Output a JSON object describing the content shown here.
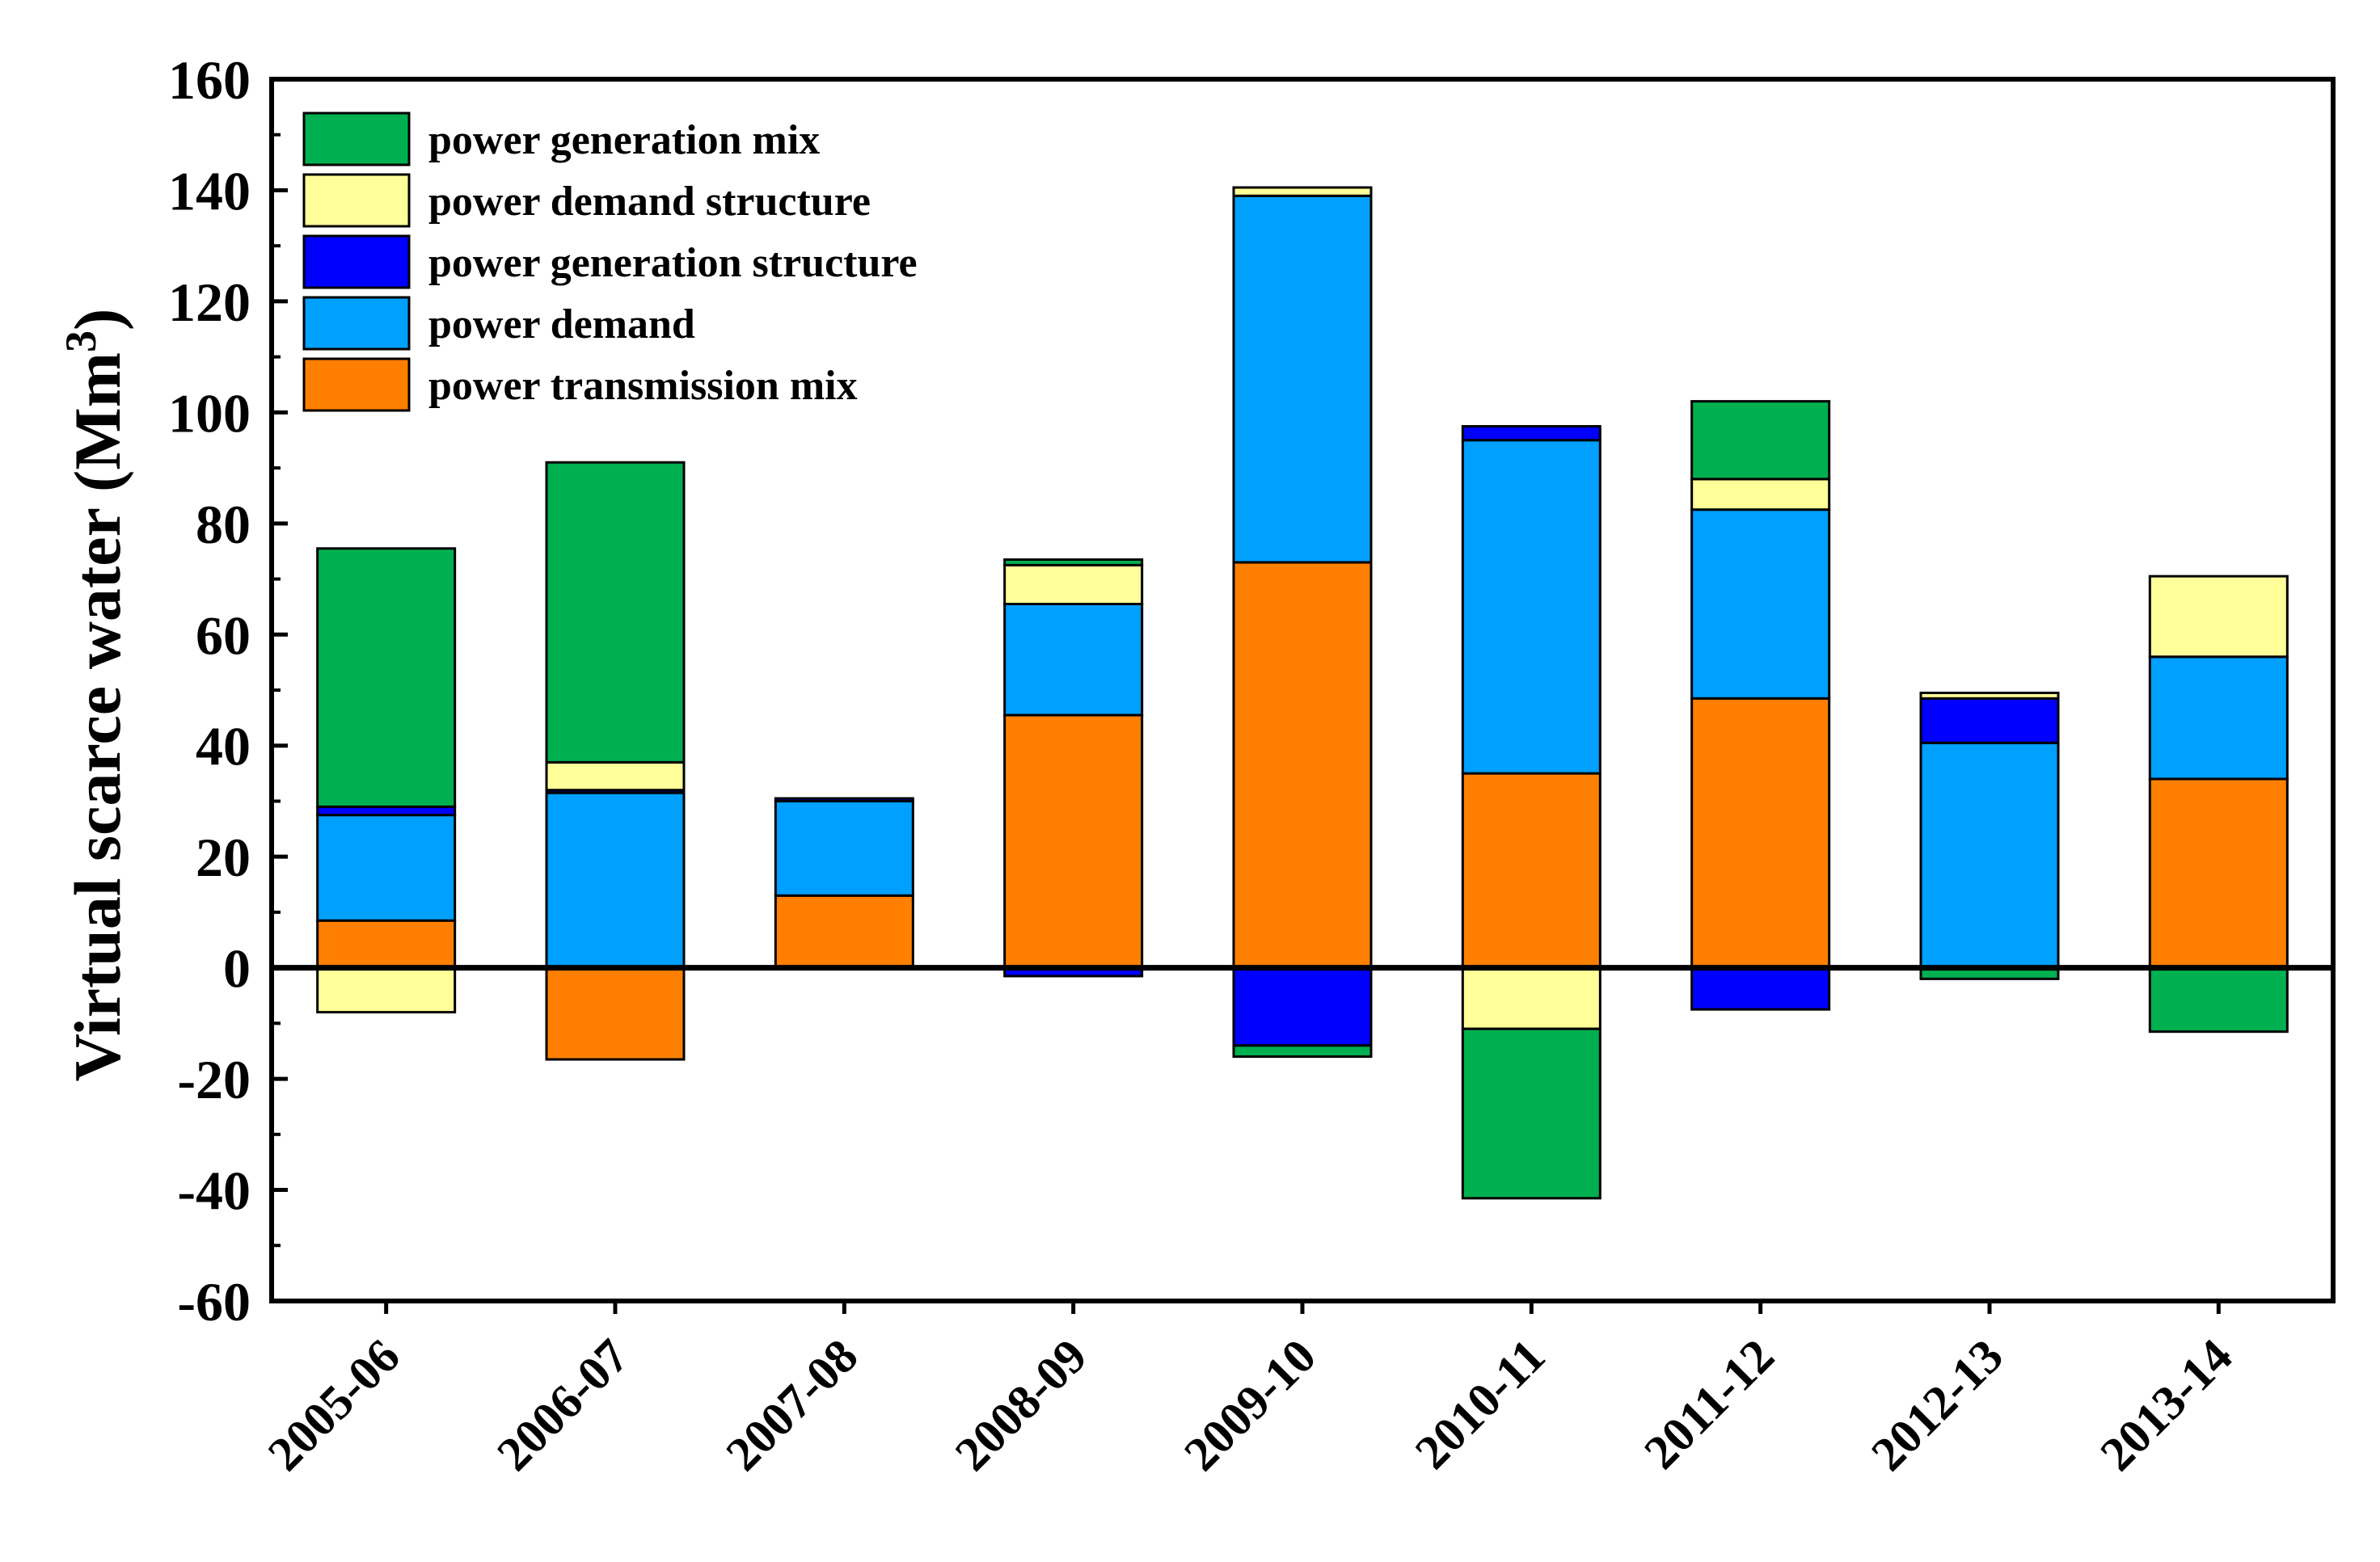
{
  "chart_data": {
    "type": "bar",
    "stacked": true,
    "xlabel": "",
    "ylabel": "Virtual scarce water (Mm",
    "ylabel_superscript": "3",
    "ylabel_suffix": ")",
    "ylim": [
      -60,
      160
    ],
    "yticks": [
      "160",
      "140",
      "120",
      "100",
      "80",
      "60",
      "40",
      "20",
      "0",
      "-20",
      "-40",
      "-60"
    ],
    "ytick_values": [
      160,
      140,
      120,
      100,
      80,
      60,
      40,
      20,
      0,
      -20,
      -40,
      -60
    ],
    "categories": [
      "2005-06",
      "2006-07",
      "2007-08",
      "2008-09",
      "2009-10",
      "2010-11",
      "2011-12",
      "2012-13",
      "2013-14"
    ],
    "legend_position": "top-left",
    "series": [
      {
        "name": "power transmission mix",
        "color": "#FF8000",
        "values": [
          8.5,
          -16.5,
          13,
          45.5,
          73,
          35,
          48.5,
          0,
          34
        ]
      },
      {
        "name": "power demand",
        "color": "#00A0FF",
        "values": [
          19,
          31.5,
          17,
          20,
          66,
          60,
          34,
          40.5,
          22
        ]
      },
      {
        "name": "power generation structure",
        "color": "#0000FF",
        "values": [
          1.5,
          0.5,
          0.5,
          -1.5,
          -14,
          2.5,
          -7.5,
          8,
          0
        ]
      },
      {
        "name": "power demand structure",
        "color": "#FFFF99",
        "values": [
          -8,
          5,
          0,
          7,
          1.5,
          -11,
          5.5,
          1,
          14.5
        ]
      },
      {
        "name": "power generation mix",
        "color": "#00B050",
        "values": [
          46.5,
          54,
          0,
          1,
          -2,
          -30.5,
          14,
          -2,
          -11.5
        ]
      }
    ],
    "legend_order": [
      "power generation mix",
      "power demand structure",
      "power generation structure",
      "power demand",
      "power transmission mix"
    ]
  }
}
